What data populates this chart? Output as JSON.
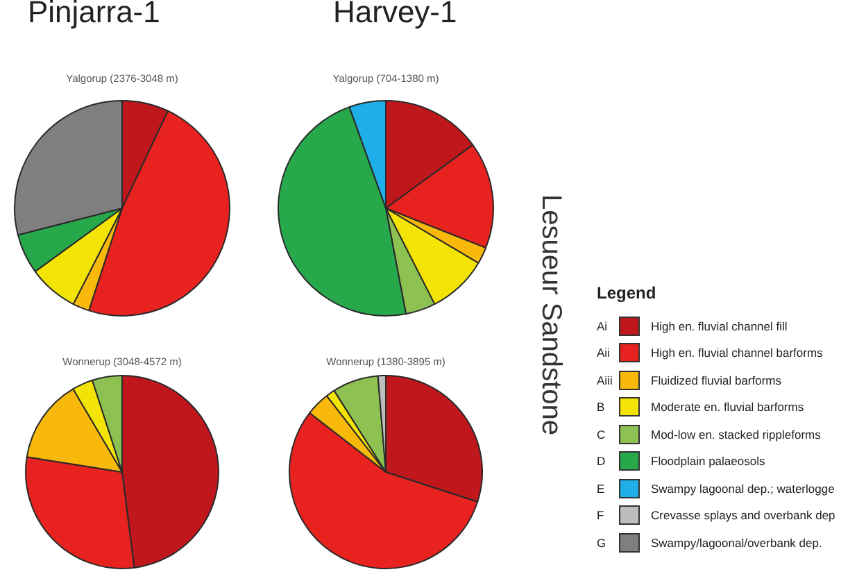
{
  "chart_data": [
    {
      "type": "pie",
      "title": "Pinjarra-1",
      "subtitle": "Yalgorup (2376-3048 m)",
      "categories": [
        null,
        null,
        null,
        null,
        null,
        null,
        null,
        null,
        null
      ],
      "values": [
        7,
        48,
        2.5,
        7.5,
        null,
        6,
        null,
        null,
        29
      ],
      "colors": [
        "#c0171c",
        "#e8221f",
        "#f9b90b",
        "#f4e405",
        "#8dc152",
        "#27a84a",
        "#1eaee8",
        "#bdbdbd",
        "#7f7f7f"
      ]
    },
    {
      "type": "pie",
      "title": "Harvey-1",
      "subtitle": "Yalgorup (704-1380 m)",
      "annotations": [
        "Lesueur Sandstone"
      ],
      "categories": [
        null,
        null,
        null,
        null,
        null,
        null,
        null,
        null,
        null
      ],
      "values": [
        15,
        16,
        2.5,
        9,
        4.5,
        47.5,
        5.5,
        null,
        null
      ],
      "colors": [
        "#c0171c",
        "#e8221f",
        "#f9b90b",
        "#f4e405",
        "#8dc152",
        "#27a84a",
        "#1eaee8",
        "#bdbdbd",
        "#7f7f7f"
      ]
    },
    {
      "type": "pie",
      "subtitle": "Wonnerup (3048-4572 m)",
      "categories": [
        null,
        null,
        null,
        null,
        null,
        null,
        null,
        null,
        null
      ],
      "values": [
        48,
        29.5,
        14,
        3.5,
        5,
        null,
        null,
        null,
        null
      ],
      "colors": [
        "#c0171c",
        "#e8221f",
        "#f9b90b",
        "#f4e405",
        "#8dc152",
        "#27a84a",
        "#1eaee8",
        "#bdbdbd",
        "#7f7f7f"
      ]
    },
    {
      "type": "pie",
      "subtitle": "Wonnerup (1380-3895 m)",
      "legend": "right",
      "legend_title": "Legend",
      "annotations": [
        "Ai",
        "Aii",
        "Aiii",
        "B",
        "C",
        "D",
        "E",
        "F",
        "G"
      ],
      "categories": [
        "High en. fluvial channel fill",
        "High en. fluvial channel barforms",
        "Fluidized fluvial barforms",
        "Moderate en. fluvial barforms",
        "Mod-low en. stacked rippleforms",
        "Floodplain palaeosols",
        "Swampy lagoonal dep.; waterlogge",
        "Crevasse splays and overbank dep",
        "Swampy/lagoonal/overbank dep."
      ],
      "values": [
        30,
        55.5,
        4,
        1.5,
        7.7,
        null,
        null,
        1.3,
        null
      ],
      "colors": [
        "#c0171c",
        "#e8221f",
        "#f9b90b",
        "#f4e405",
        "#8dc152",
        "#27a84a",
        "#1eaee8",
        "#bdbdbd",
        "#7f7f7f"
      ]
    }
  ]
}
